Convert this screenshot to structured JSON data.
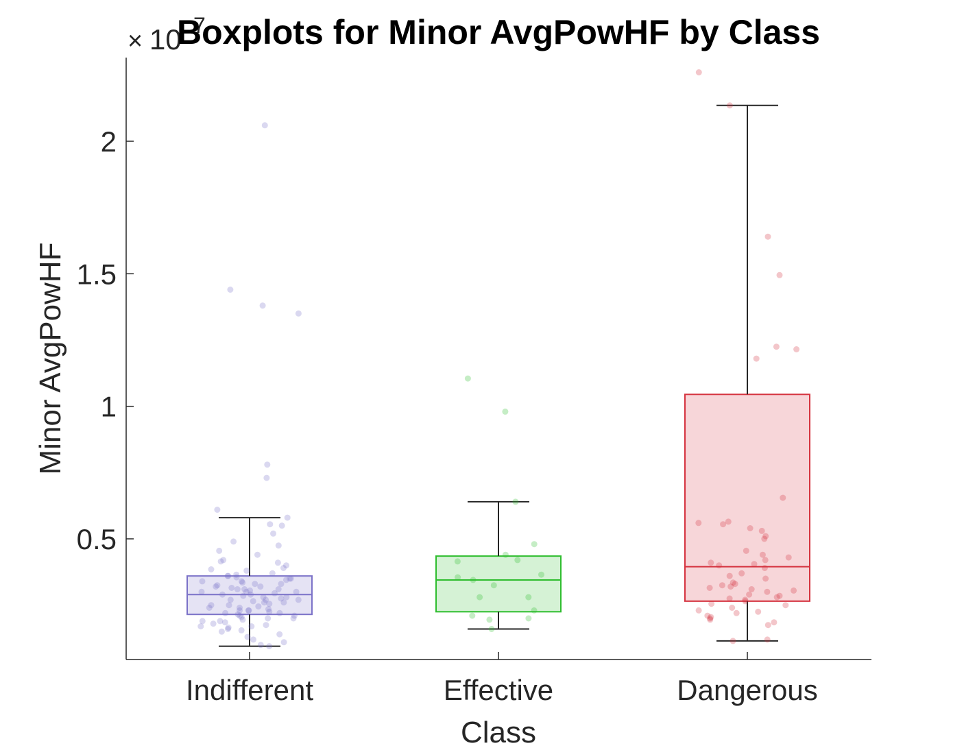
{
  "chart_data": {
    "type": "boxplot",
    "title": "Boxplots for Minor AvgPowHF by Class",
    "xlabel": "Class",
    "ylabel": "Minor AvgPowHF",
    "exponent_label": "10",
    "exponent_power": "7",
    "ylim": [
      0.05,
      2.3
    ],
    "yticks": [
      0.5,
      1,
      1.5,
      2
    ],
    "ytick_labels": [
      "0.5",
      "1",
      "1.5",
      "2"
    ],
    "categories": [
      "Indifferent",
      "Effective",
      "Dangerous"
    ],
    "boxes": [
      {
        "name": "Indifferent",
        "color": "#7b72c8",
        "whisker_low": 0.095,
        "q1": 0.215,
        "median": 0.29,
        "q3": 0.36,
        "whisker_high": 0.58,
        "points": [
          2.06,
          1.44,
          1.38,
          1.35,
          0.78,
          0.73,
          0.61,
          0.58,
          0.555,
          0.55,
          0.52,
          0.49,
          0.475,
          0.455,
          0.44,
          0.42,
          0.415,
          0.41,
          0.4,
          0.39,
          0.385,
          0.38,
          0.37,
          0.365,
          0.36,
          0.355,
          0.35,
          0.345,
          0.34,
          0.335,
          0.33,
          0.325,
          0.32,
          0.315,
          0.31,
          0.305,
          0.3,
          0.3,
          0.295,
          0.29,
          0.285,
          0.28,
          0.275,
          0.27,
          0.265,
          0.26,
          0.255,
          0.25,
          0.245,
          0.24,
          0.235,
          0.23,
          0.225,
          0.22,
          0.215,
          0.21,
          0.205,
          0.2,
          0.195,
          0.19,
          0.185,
          0.18,
          0.175,
          0.17,
          0.165,
          0.16,
          0.155,
          0.15,
          0.14,
          0.13,
          0.12,
          0.11,
          0.1,
          0.095,
          0.34,
          0.33,
          0.31,
          0.29,
          0.27,
          0.25,
          0.23,
          0.21,
          0.19,
          0.17,
          0.35,
          0.32,
          0.3,
          0.28,
          0.26,
          0.24,
          0.22,
          0.2,
          0.36,
          0.31,
          0.27,
          0.23
        ]
      },
      {
        "name": "Effective",
        "color": "#2ebd2e",
        "whisker_low": 0.16,
        "q1": 0.225,
        "median": 0.345,
        "q3": 0.435,
        "whisker_high": 0.64,
        "points": [
          1.105,
          0.98,
          0.64,
          0.48,
          0.44,
          0.42,
          0.415,
          0.365,
          0.355,
          0.345,
          0.325,
          0.28,
          0.28,
          0.23,
          0.21,
          0.2,
          0.195,
          0.16
        ]
      },
      {
        "name": "Dangerous",
        "color": "#d5333f",
        "whisker_low": 0.115,
        "q1": 0.265,
        "median": 0.395,
        "q3": 1.045,
        "whisker_high": 2.135,
        "points": [
          2.26,
          2.135,
          1.64,
          1.495,
          1.225,
          1.215,
          1.18,
          0.655,
          0.565,
          0.56,
          0.555,
          0.54,
          0.53,
          0.51,
          0.5,
          0.455,
          0.44,
          0.43,
          0.42,
          0.41,
          0.405,
          0.4,
          0.39,
          0.37,
          0.36,
          0.35,
          0.335,
          0.33,
          0.325,
          0.32,
          0.315,
          0.31,
          0.305,
          0.3,
          0.29,
          0.285,
          0.28,
          0.275,
          0.27,
          0.265,
          0.255,
          0.25,
          0.24,
          0.23,
          0.225,
          0.22,
          0.21,
          0.205,
          0.2,
          0.195,
          0.185,
          0.175,
          0.12,
          0.115
        ]
      }
    ]
  }
}
